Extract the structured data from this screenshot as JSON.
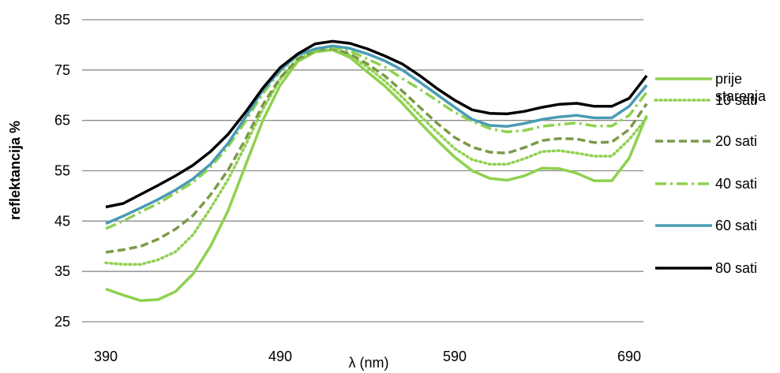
{
  "chart_data": {
    "type": "line",
    "title": "",
    "xlabel": "λ (nm)",
    "ylabel": "reflektancija %",
    "xlim": [
      390,
      700
    ],
    "ylim": [
      25,
      85
    ],
    "x_ticks": [
      390,
      490,
      590,
      690
    ],
    "y_ticks": [
      25,
      35,
      45,
      55,
      65,
      75,
      85
    ],
    "grid": "horizontal",
    "legend_position": "right",
    "x": [
      390,
      400,
      410,
      420,
      430,
      440,
      450,
      460,
      470,
      480,
      490,
      500,
      510,
      520,
      530,
      540,
      550,
      560,
      570,
      580,
      590,
      600,
      610,
      620,
      630,
      640,
      650,
      660,
      670,
      680,
      690,
      700
    ],
    "series": [
      {
        "name": "prije starenja",
        "color": "#8fd14f",
        "dash": "solid",
        "values": [
          31.5,
          30.3,
          29.2,
          29.4,
          31.0,
          34.5,
          40.0,
          47.0,
          56.0,
          65.0,
          72.0,
          76.7,
          78.6,
          79.0,
          77.5,
          74.6,
          71.8,
          68.4,
          64.6,
          61.0,
          57.7,
          55.0,
          53.5,
          53.1,
          54.0,
          55.5,
          55.4,
          54.5,
          53.0,
          53.0,
          57.5,
          66.0
        ]
      },
      {
        "name": "10 sati",
        "color": "#8fd14f",
        "dash": "dotted",
        "values": [
          36.7,
          36.4,
          36.4,
          37.3,
          38.9,
          42.3,
          47.5,
          53.2,
          60.0,
          67.2,
          73.2,
          77.0,
          78.7,
          79.1,
          77.9,
          75.6,
          72.8,
          69.6,
          66.0,
          62.6,
          59.4,
          57.2,
          56.3,
          56.3,
          57.4,
          58.8,
          59.0,
          58.5,
          57.9,
          57.9,
          61.2,
          65.5
        ]
      },
      {
        "name": "20 sati",
        "color": "#7a9a48",
        "dash": "dashed",
        "values": [
          38.8,
          39.3,
          40.0,
          41.4,
          43.4,
          46.1,
          50.2,
          55.1,
          61.2,
          68.1,
          73.5,
          77.2,
          78.9,
          79.3,
          78.2,
          76.2,
          73.8,
          70.8,
          67.6,
          64.4,
          61.6,
          59.7,
          58.7,
          58.5,
          59.6,
          61.0,
          61.4,
          61.3,
          60.6,
          60.7,
          63.2,
          68.3
        ]
      },
      {
        "name": "40 sati",
        "color": "#8fd14f",
        "dash": "dashdot",
        "values": [
          43.5,
          45.0,
          46.8,
          48.5,
          50.6,
          52.7,
          55.7,
          59.7,
          64.8,
          70.3,
          74.8,
          77.9,
          79.0,
          79.5,
          78.8,
          77.2,
          75.6,
          73.3,
          71.2,
          68.9,
          66.6,
          64.8,
          63.4,
          62.7,
          63.0,
          63.8,
          64.2,
          64.5,
          63.9,
          63.9,
          66.0,
          70.6
        ]
      },
      {
        "name": "60 sati",
        "color": "#4a9bb5",
        "dash": "solid",
        "values": [
          44.5,
          46.0,
          47.6,
          49.3,
          51.2,
          53.4,
          56.3,
          60.4,
          65.6,
          71.0,
          75.0,
          78.0,
          79.2,
          79.8,
          79.3,
          78.2,
          76.8,
          75.0,
          72.6,
          70.1,
          67.6,
          65.2,
          64.0,
          63.8,
          64.4,
          65.2,
          65.7,
          66.0,
          65.5,
          65.5,
          67.8,
          72.0
        ]
      },
      {
        "name": "80 sati",
        "color": "#000000",
        "dash": "solid",
        "values": [
          47.8,
          48.5,
          50.3,
          52.1,
          54.0,
          56.1,
          58.8,
          62.2,
          66.6,
          71.4,
          75.5,
          78.2,
          80.2,
          80.7,
          80.3,
          79.2,
          77.8,
          76.2,
          73.9,
          71.3,
          69.0,
          67.1,
          66.4,
          66.3,
          66.8,
          67.6,
          68.2,
          68.4,
          67.8,
          67.8,
          69.4,
          73.9
        ]
      }
    ]
  }
}
